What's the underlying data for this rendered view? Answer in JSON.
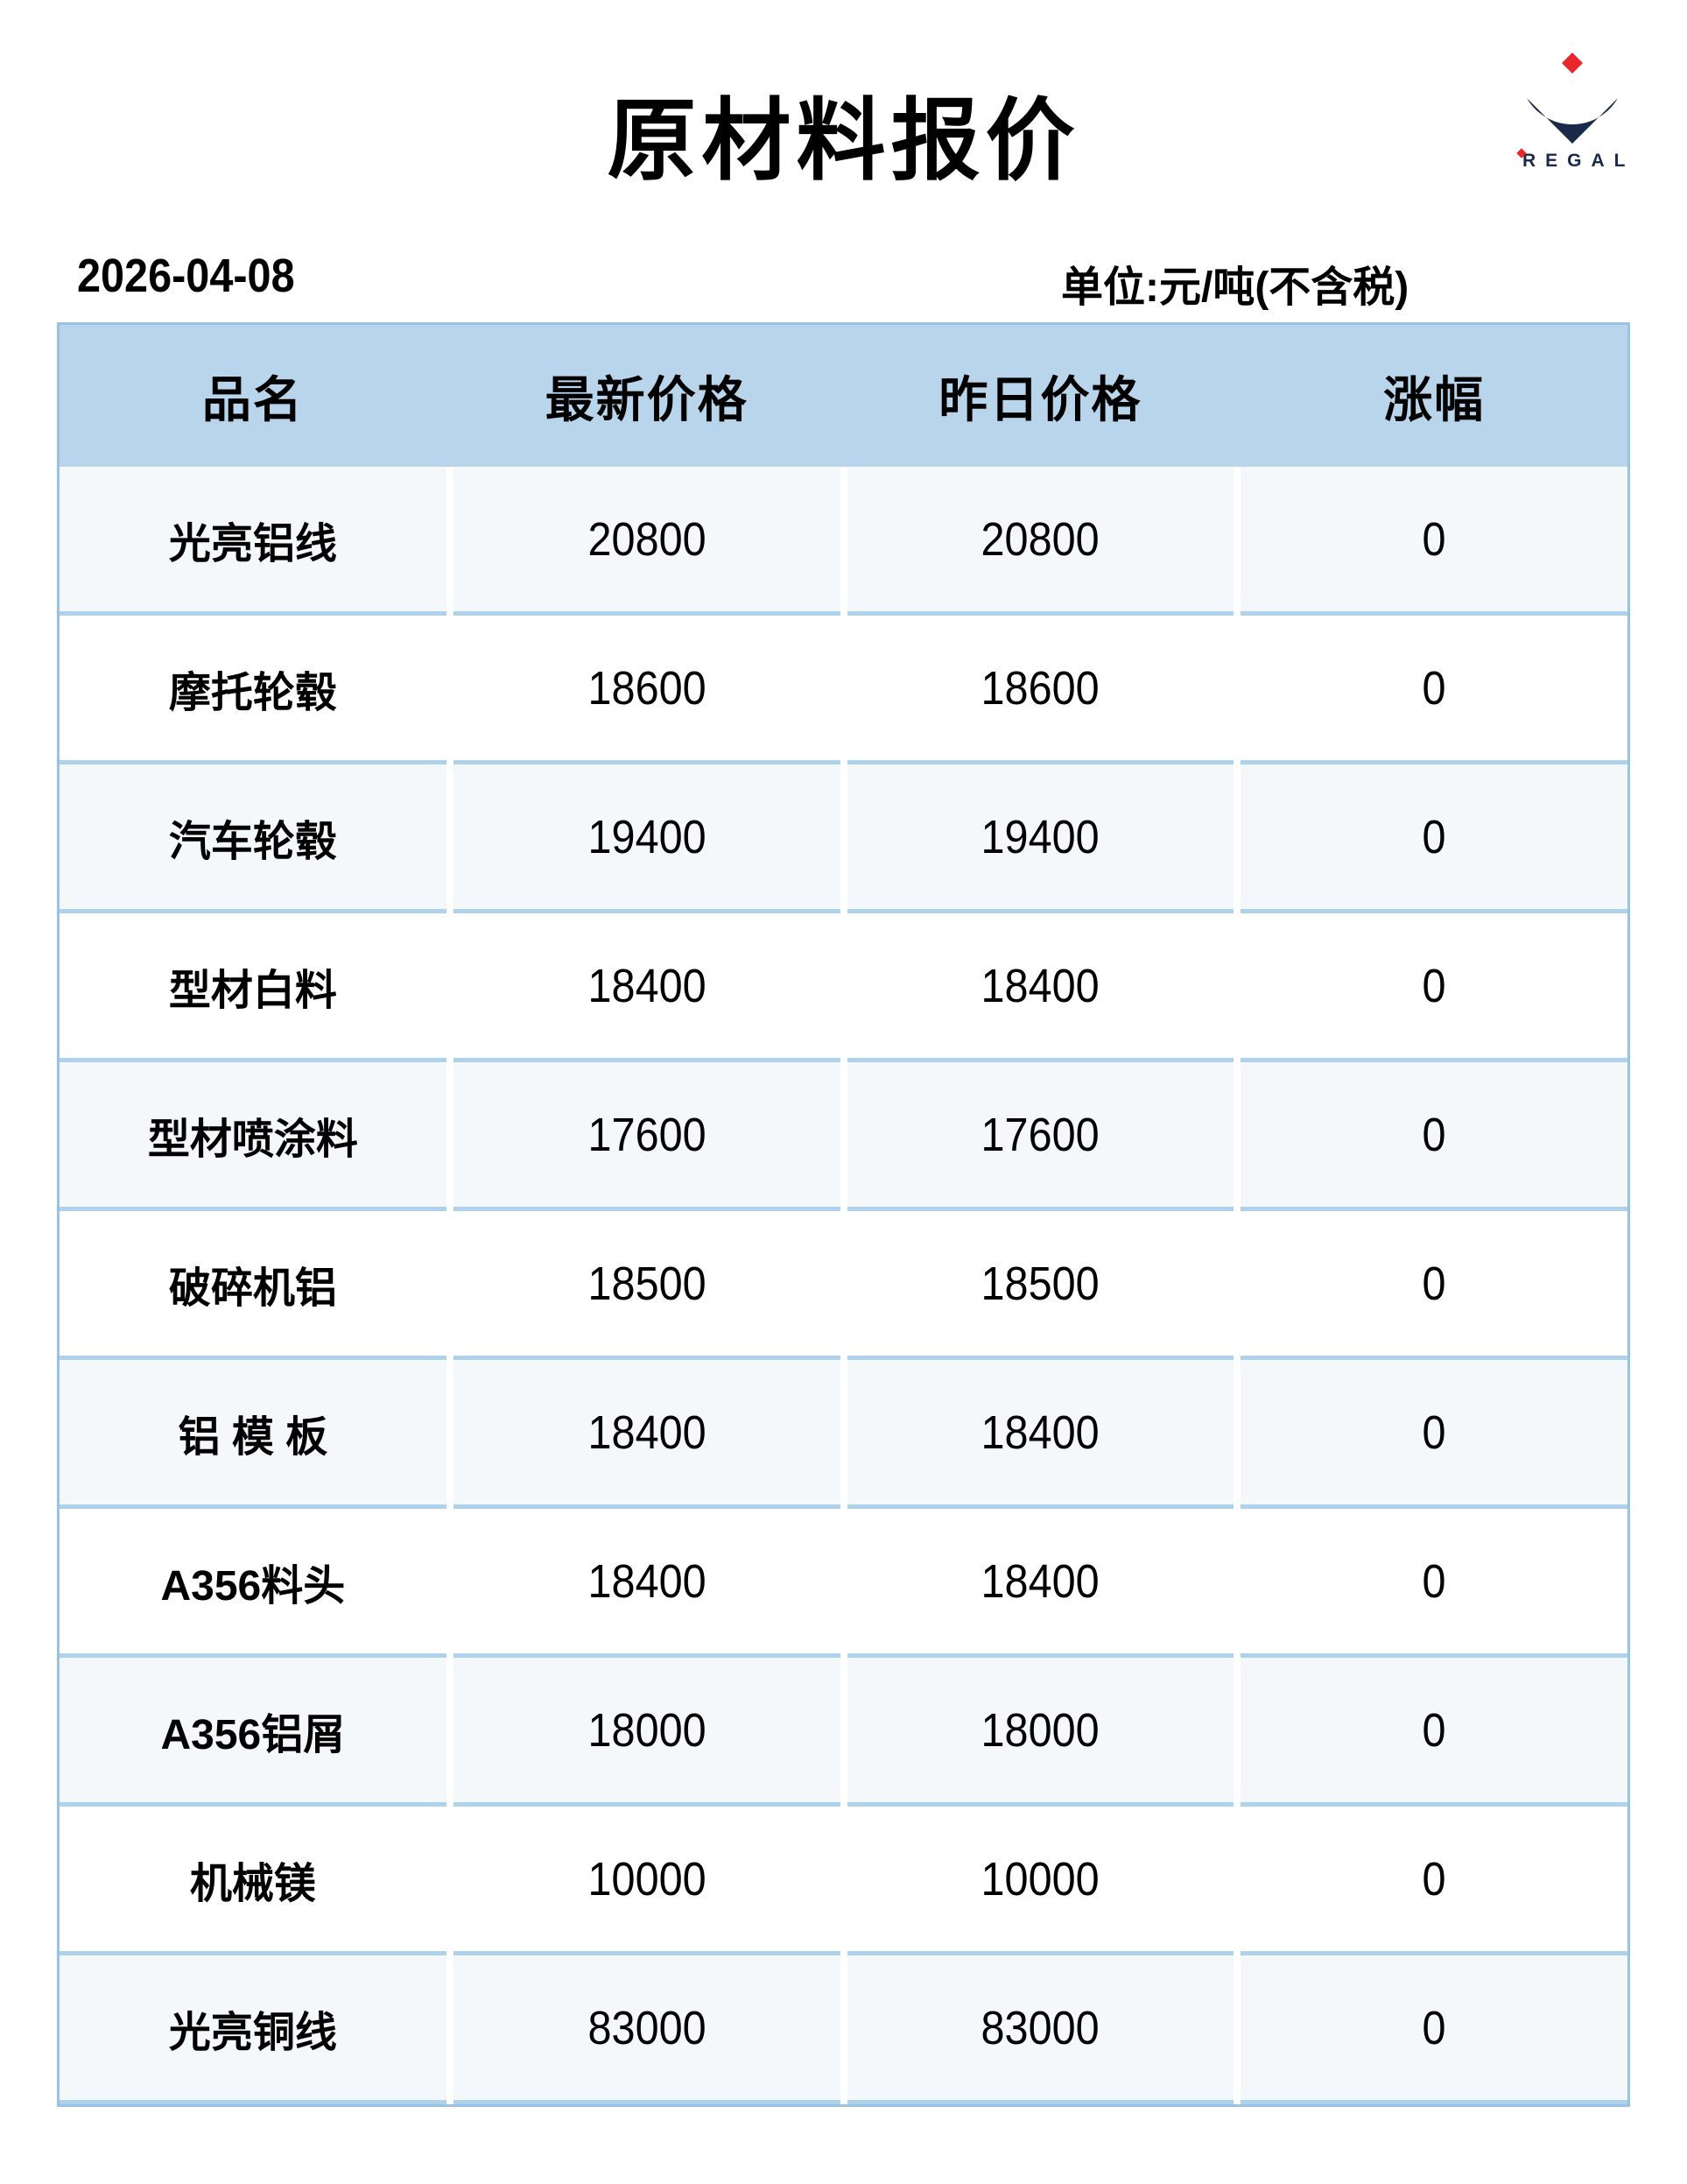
{
  "page": {
    "title": "原材料报价",
    "date": "2026-04-08",
    "unit_label": "单位:元/吨(不含税)"
  },
  "logo": {
    "brand": "REGAL",
    "mark": "diamond-crescent-with-red-diamond",
    "colors": {
      "navy": "#1b294a",
      "red": "#e8262c"
    }
  },
  "table": {
    "headers": [
      "品名",
      "最新价格",
      "昨日价格",
      "涨幅"
    ],
    "rows": [
      {
        "name": "光亮铝线",
        "latest": "20800",
        "yesterday": "20800",
        "change": "0"
      },
      {
        "name": "摩托轮毂",
        "latest": "18600",
        "yesterday": "18600",
        "change": "0"
      },
      {
        "name": "汽车轮毂",
        "latest": "19400",
        "yesterday": "19400",
        "change": "0"
      },
      {
        "name": "型材白料",
        "latest": "18400",
        "yesterday": "18400",
        "change": "0"
      },
      {
        "name": "型材喷涂料",
        "latest": "17600",
        "yesterday": "17600",
        "change": "0"
      },
      {
        "name": "破碎机铝",
        "latest": "18500",
        "yesterday": "18500",
        "change": "0"
      },
      {
        "name": "铝 模 板",
        "latest": "18400",
        "yesterday": "18400",
        "change": "0"
      },
      {
        "name": "A356料头",
        "latest": "18400",
        "yesterday": "18400",
        "change": "0"
      },
      {
        "name": "A356铝屑",
        "latest": "18000",
        "yesterday": "18000",
        "change": "0"
      },
      {
        "name": "机械镁",
        "latest": "10000",
        "yesterday": "10000",
        "change": "0"
      },
      {
        "name": "光亮铜线",
        "latest": "83000",
        "yesterday": "83000",
        "change": "0"
      }
    ]
  },
  "colors": {
    "header_bg": "#b9d5eb",
    "row_tint": "#f4f8fb",
    "divider": "#aed1ec",
    "outer_border": "#9ac3e3"
  }
}
